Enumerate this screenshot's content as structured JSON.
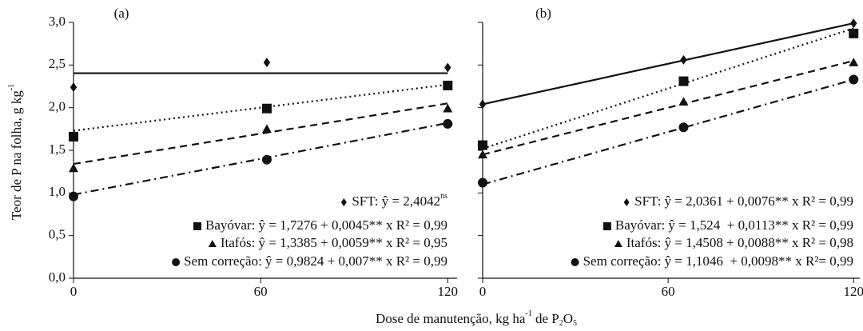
{
  "xlabel": [
    "Dose de manutenção, kg ha",
    "-1",
    " de P",
    "2",
    "O",
    "5"
  ],
  "chart_data": [
    {
      "type": "line",
      "panel": "(a)",
      "ylabel": [
        "Teor de P na folha, g kg",
        "-1"
      ],
      "xlim": [
        0,
        123
      ],
      "ylim": [
        0,
        3
      ],
      "xticks": [
        0,
        60,
        120
      ],
      "yticks": [
        {
          "value": 0,
          "label": "0,0"
        },
        {
          "value": 0.5,
          "label": "0,5"
        },
        {
          "value": 1,
          "label": "1,0"
        },
        {
          "value": 1.5,
          "label": "1,5"
        },
        {
          "value": 2,
          "label": "2,0"
        },
        {
          "value": 2.5,
          "label": "2,5"
        },
        {
          "value": 3,
          "label": "3,0"
        }
      ],
      "x": [
        0,
        62,
        120
      ],
      "fit_x": [
        0,
        120
      ],
      "series": [
        {
          "label": "SFT: ŷ = 2,4042",
          "label_sup": "ns",
          "color": "#111111",
          "marker": "diamond",
          "line_style": "solid",
          "values": [
            2.24,
            2.53,
            2.47
          ],
          "fit": [
            2.4042,
            2.4042
          ]
        },
        {
          "label": "Bayóvar: ŷ = 1,7276 + 0,0045** x R² = 0,99",
          "color": "#111111",
          "marker": "square",
          "line_style": "dotted",
          "values": [
            1.66,
            1.99,
            2.26
          ],
          "fit": [
            1.73,
            2.27
          ]
        },
        {
          "label": "Itafós: ŷ = 1,3385 + 0,0059** x R² = 0,95",
          "color": "#111111",
          "marker": "triangle",
          "line_style": "dashed",
          "values": [
            1.29,
            1.75,
            1.99
          ],
          "fit": [
            1.34,
            2.05
          ]
        },
        {
          "label": "Sem correção: ŷ = 0,9824 + 0,007** x R² = 0,99",
          "color": "#111111",
          "marker": "circle",
          "line_style": "dashdot",
          "values": [
            0.96,
            1.39,
            1.81
          ],
          "fit": [
            0.98,
            1.82
          ]
        }
      ]
    },
    {
      "type": "line",
      "panel": "(b)",
      "xlim": [
        0,
        122
      ],
      "ylim": [
        0,
        3
      ],
      "xticks": [
        0,
        60,
        120
      ],
      "yticks": [
        0,
        0.5,
        1,
        1.5,
        2,
        2.5,
        3
      ],
      "x": [
        0,
        65,
        120
      ],
      "fit_x": [
        0,
        120
      ],
      "series": [
        {
          "label": "SFT: ŷ = 2,0361 + 0,0076** x R² = 0,99",
          "color": "#111111",
          "marker": "diamond",
          "line_style": "solid",
          "values": [
            2.04,
            2.56,
            2.99
          ],
          "fit": [
            2.04,
            2.99
          ]
        },
        {
          "label": "Bayóvar: ŷ = 1,524  + 0,0113** x R² = 0,99",
          "color": "#111111",
          "marker": "square",
          "line_style": "dotted",
          "values": [
            1.56,
            2.31,
            2.87
          ],
          "fit": [
            1.52,
            2.93
          ]
        },
        {
          "label": "Itafós: ŷ = 1,4508 + 0,0088** x R² = 0,98",
          "color": "#111111",
          "marker": "triangle",
          "line_style": "dashed",
          "values": [
            1.45,
            2.07,
            2.53
          ],
          "fit": [
            1.45,
            2.55
          ]
        },
        {
          "label": "Sem correção: ŷ = 1,1046  + 0,0098** x R²= 0,99",
          "color": "#111111",
          "marker": "circle",
          "line_style": "dashdot",
          "values": [
            1.12,
            1.77,
            2.33
          ],
          "fit": [
            1.1,
            2.33
          ]
        }
      ]
    }
  ]
}
